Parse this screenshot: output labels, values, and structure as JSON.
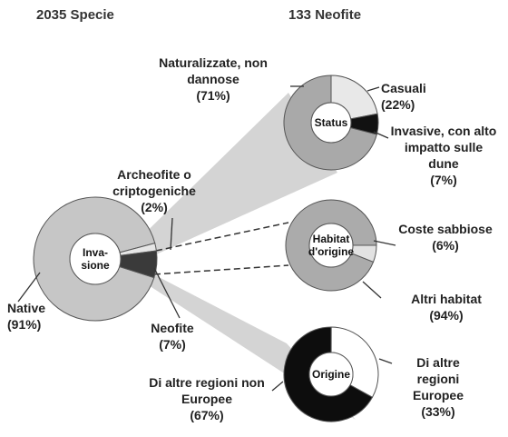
{
  "headers": [
    "2035 Specie",
    "133 Neofite"
  ],
  "chart_data": [
    {
      "type": "donut",
      "center_label": "Inva-sione",
      "categories": [
        "Native",
        "Archeofite o criptogeniche",
        "Neofite"
      ],
      "values": [
        91,
        2,
        7
      ],
      "value_labels": [
        "(91%)",
        "(2%)",
        "(7%)"
      ],
      "colors": [
        "#c6c6c6",
        "#e6e6e6",
        "#3a3a3a"
      ]
    },
    {
      "type": "donut",
      "center_label": "Status",
      "categories": [
        "Naturalizzate, non dannose",
        "Casuali",
        "Invasive, con alto impatto sulle dune"
      ],
      "values": [
        71,
        22,
        7
      ],
      "value_labels": [
        "(71%)",
        "(22%)",
        "(7%)"
      ],
      "colors": [
        "#a9a9a9",
        "#e8e8e8",
        "#111111"
      ]
    },
    {
      "type": "donut",
      "center_label": "Habitat d'origine",
      "categories": [
        "Coste sabbiose",
        "Altri habitat"
      ],
      "values": [
        6,
        94
      ],
      "value_labels": [
        "(6%)",
        "(94%)"
      ],
      "colors": [
        "#e2e2e2",
        "#ababab"
      ]
    },
    {
      "type": "donut",
      "center_label": "Origine",
      "categories": [
        "Di altre regioni non Europee",
        "Di altre regioni Europee"
      ],
      "values": [
        67,
        33
      ],
      "value_labels": [
        "(67%)",
        "(33%)"
      ],
      "colors": [
        "#0d0d0d",
        "#ffffff"
      ]
    }
  ]
}
